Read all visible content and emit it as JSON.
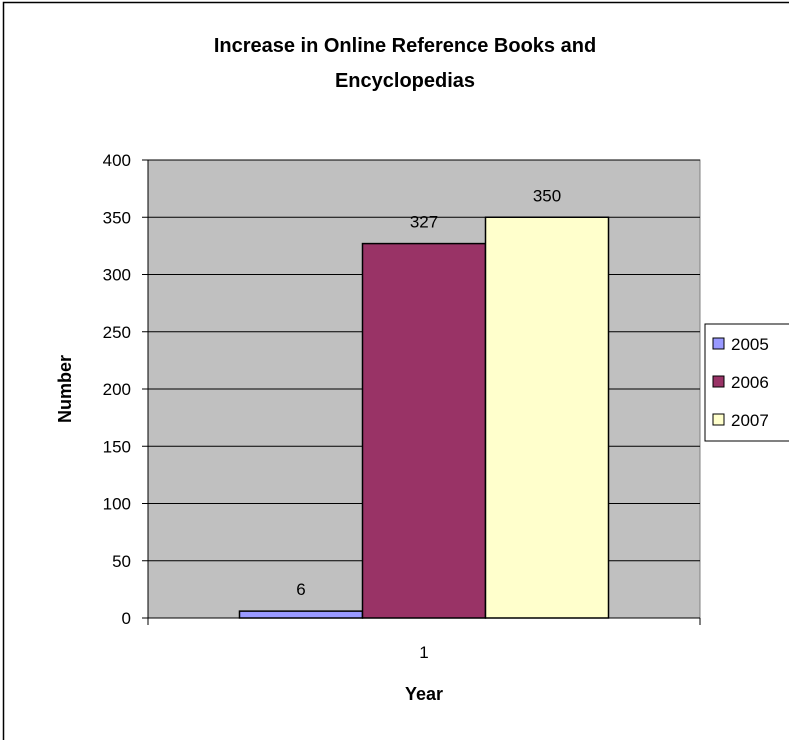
{
  "chart_data": {
    "type": "bar",
    "title_lines": [
      "Increase in Online Reference Books and",
      "Encyclopedias"
    ],
    "xlabel": "Year",
    "ylabel": "Number",
    "categories": [
      "1"
    ],
    "ylim": [
      0,
      400
    ],
    "yticks": [
      0,
      50,
      100,
      150,
      200,
      250,
      300,
      350,
      400
    ],
    "grid": true,
    "legend_position": "right",
    "plot_background": "#c0c0c0",
    "series": [
      {
        "name": "2005",
        "values": [
          6
        ],
        "color": "#9999ff",
        "label": "6"
      },
      {
        "name": "2006",
        "values": [
          327
        ],
        "color": "#993366",
        "label": "327"
      },
      {
        "name": "2007",
        "values": [
          350
        ],
        "color": "#ffffcc",
        "label": "350"
      }
    ]
  }
}
